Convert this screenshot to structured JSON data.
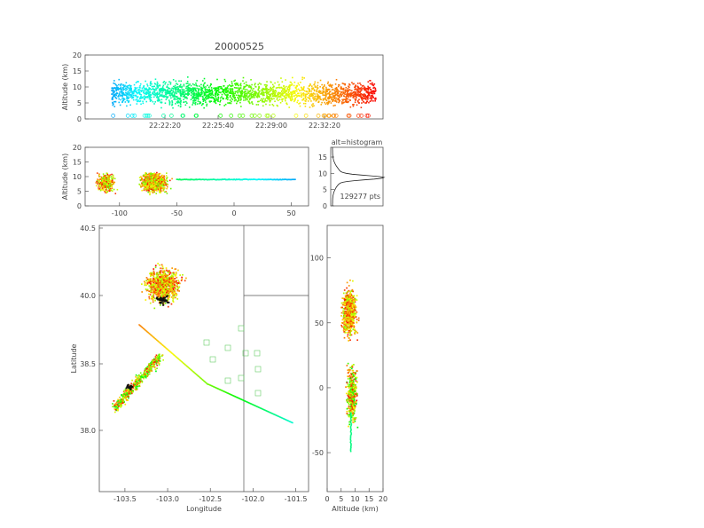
{
  "title": "20000525",
  "chart_data": [
    {
      "id": "time_altitude",
      "type": "scatter",
      "ylabel": "Altitude (km)",
      "xticks": [
        "22:22:20",
        "22:25:40",
        "22:29:00",
        "22:32:20"
      ],
      "yticks": [
        0,
        5,
        10,
        15,
        20
      ],
      "ylim": [
        0,
        20
      ],
      "description_colormap": "time-colored (blue→green→yellow→red)"
    },
    {
      "id": "x_altitude",
      "type": "scatter",
      "ylabel": "Altitude (km)",
      "xticks": [
        -100,
        -50,
        0,
        50
      ],
      "xlim": [
        -130,
        65
      ],
      "yticks": [
        0,
        5,
        10,
        15,
        20
      ],
      "ylim": [
        0,
        20
      ]
    },
    {
      "id": "alt_histogram",
      "type": "line",
      "title": "alt=histogram",
      "yticks": [
        0,
        5,
        10,
        15
      ],
      "ylim": [
        0,
        18
      ],
      "annotation": "129277 pts"
    },
    {
      "id": "lon_lat",
      "type": "scatter",
      "xlabel": "Longitude",
      "ylabel": "Latitude",
      "xticks": [
        "-103.5",
        "-103.0",
        "-102.5",
        "-102.0",
        "-101.5"
      ],
      "xlim": [
        -103.8,
        -101.35
      ],
      "yticks": [
        "38.0",
        "38.5",
        "40.0",
        "40.5"
      ],
      "ylim_note": "broken latitude axis"
    },
    {
      "id": "altitude_y",
      "type": "scatter",
      "xlabel": "Altitude (km)",
      "xticks": [
        0,
        5,
        10,
        15,
        20
      ],
      "xlim": [
        0,
        20
      ],
      "yticks": [
        -50,
        0,
        50,
        100
      ],
      "ylim": [
        -80,
        125
      ]
    }
  ]
}
